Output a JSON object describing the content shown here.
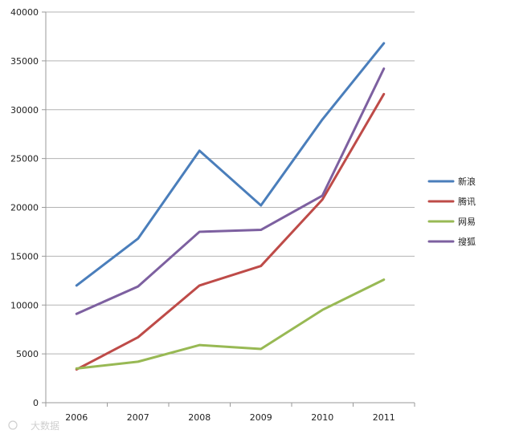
{
  "chart_data": {
    "type": "line",
    "title": "",
    "xlabel": "",
    "ylabel": "",
    "categories": [
      "2006",
      "2007",
      "2008",
      "2009",
      "2010",
      "2011"
    ],
    "ylim": [
      0,
      40000
    ],
    "yticks": [
      0,
      5000,
      10000,
      15000,
      20000,
      25000,
      30000,
      35000,
      40000
    ],
    "grid": true,
    "legend_position": "right",
    "series": [
      {
        "name": "新浪",
        "color": "#4a7ebb",
        "values": [
          12000,
          16800,
          25800,
          20200,
          29000,
          36800
        ]
      },
      {
        "name": "腾讯",
        "color": "#be4b48",
        "values": [
          3400,
          6700,
          12000,
          14000,
          20800,
          31600
        ]
      },
      {
        "name": "网易",
        "color": "#98b954",
        "values": [
          3500,
          4200,
          5900,
          5500,
          9500,
          12600
        ]
      },
      {
        "name": "搜狐",
        "color": "#7d60a0",
        "values": [
          9100,
          11900,
          17500,
          17700,
          21200,
          34200
        ]
      }
    ]
  },
  "watermark": {
    "text": "大数据"
  }
}
